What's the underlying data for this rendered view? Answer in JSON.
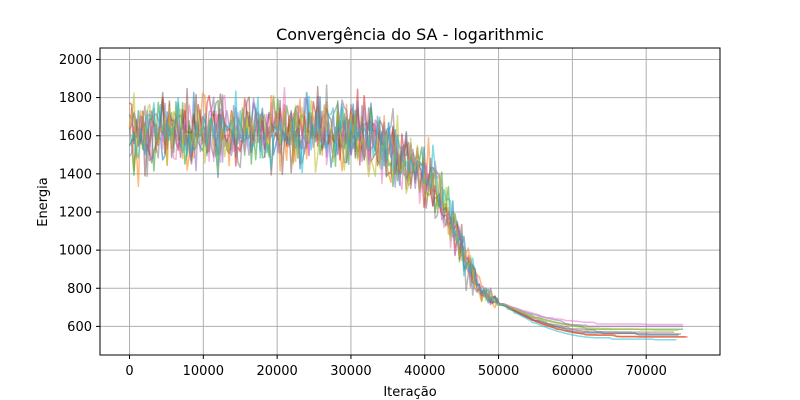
{
  "chart_data": {
    "type": "line",
    "title": "Convergência do SA - logarithmic",
    "xlabel": "Iteração",
    "ylabel": "Energia",
    "xlim": [
      -4000,
      80000
    ],
    "ylim": [
      450,
      2060
    ],
    "xticks": [
      0,
      10000,
      20000,
      30000,
      40000,
      50000,
      60000,
      70000
    ],
    "yticks": [
      600,
      800,
      1000,
      1200,
      1400,
      1600,
      1800,
      2000
    ],
    "grid": true,
    "legend": "none",
    "colors": [
      "#1f77b4",
      "#ff7f0e",
      "#2ca02c",
      "#d62728",
      "#9467bd",
      "#8c564b",
      "#e377c2",
      "#7f7f7f",
      "#bcbd22",
      "#17becf"
    ],
    "series": [
      {
        "color": "#1f77b4",
        "end_x": 74500,
        "final": 555
      },
      {
        "color": "#ff7f0e",
        "end_x": 75500,
        "final": 545
      },
      {
        "color": "#2ca02c",
        "end_x": 75000,
        "final": 585
      },
      {
        "color": "#d62728",
        "end_x": 75800,
        "final": 545
      },
      {
        "color": "#9467bd",
        "end_x": 75000,
        "final": 600
      },
      {
        "color": "#8c564b",
        "end_x": 74800,
        "final": 560
      },
      {
        "color": "#e377c2",
        "end_x": 75200,
        "final": 610
      },
      {
        "color": "#7f7f7f",
        "end_x": 74000,
        "final": 570
      },
      {
        "color": "#bcbd22",
        "end_x": 74600,
        "final": 580
      },
      {
        "color": "#17becf",
        "end_x": 74200,
        "final": 530
      }
    ]
  }
}
